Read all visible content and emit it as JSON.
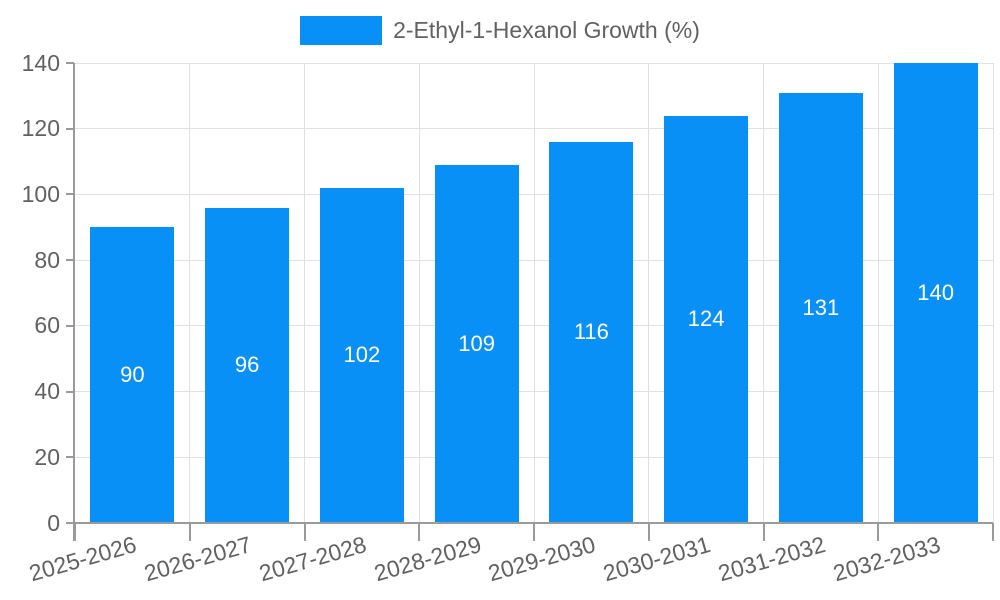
{
  "chart_data": {
    "type": "bar",
    "title": "",
    "xlabel": "",
    "ylabel": "",
    "legend": {
      "position": "top",
      "label": "2-Ethyl-1-Hexanol Growth (%)"
    },
    "categories": [
      "2025-2026",
      "2026-2027",
      "2027-2028",
      "2028-2029",
      "2029-2030",
      "2030-2031",
      "2031-2032",
      "2032-2033"
    ],
    "series": [
      {
        "name": "2-Ethyl-1-Hexanol Growth (%)",
        "values": [
          90,
          96,
          102,
          109,
          116,
          124,
          131,
          140
        ]
      }
    ],
    "value_labels_shown": true,
    "ylim": [
      0,
      140
    ],
    "yticks": [
      0,
      20,
      40,
      60,
      80,
      100,
      120,
      140
    ],
    "grid": true,
    "colors": {
      "bar": "#0890f6",
      "value_label": "#ffffff",
      "axis_text": "#616161",
      "grid_line": "#e0e0e0",
      "axis_line": "#9a9a9a"
    }
  }
}
